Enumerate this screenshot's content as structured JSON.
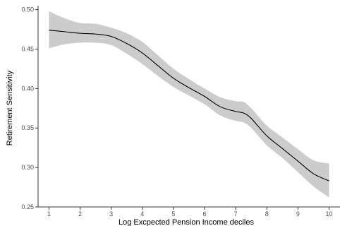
{
  "chart_data": {
    "type": "line",
    "title": "",
    "xlabel": "Log Excpected Pension Income deciles",
    "ylabel": "Retirement Sensitivity",
    "xlim": [
      0.65,
      10.35
    ],
    "ylim": [
      0.25,
      0.505
    ],
    "x_ticks": [
      1,
      2,
      3,
      4,
      5,
      6,
      7,
      8,
      9,
      10
    ],
    "x_tick_labels": [
      "1",
      "2",
      "3",
      "4",
      "5",
      "6",
      "7",
      "8",
      "9",
      "10"
    ],
    "y_ticks": [
      0.25,
      0.3,
      0.35,
      0.4,
      0.45,
      0.5
    ],
    "y_tick_labels": [
      "0.25",
      "0.30",
      "0.35",
      "0.40",
      "0.45",
      "0.50"
    ],
    "grid": false,
    "legend": "none",
    "series": [
      {
        "x": [
          1,
          1.5,
          2,
          2.5,
          3,
          3.5,
          4,
          4.5,
          5,
          5.5,
          6,
          6.5,
          7,
          7.25,
          7.5,
          8,
          8.5,
          9,
          9.5,
          10
        ],
        "y": [
          0.474,
          0.472,
          0.47,
          0.469,
          0.466,
          0.457,
          0.445,
          0.429,
          0.413,
          0.401,
          0.39,
          0.377,
          0.371,
          0.369,
          0.362,
          0.34,
          0.324,
          0.308,
          0.292,
          0.283
        ],
        "lower": [
          0.451,
          0.456,
          0.458,
          0.458,
          0.455,
          0.444,
          0.431,
          0.416,
          0.402,
          0.391,
          0.38,
          0.366,
          0.359,
          0.357,
          0.35,
          0.328,
          0.312,
          0.294,
          0.276,
          0.262
        ],
        "upper": [
          0.498,
          0.489,
          0.483,
          0.482,
          0.477,
          0.47,
          0.459,
          0.442,
          0.425,
          0.412,
          0.4,
          0.389,
          0.384,
          0.383,
          0.375,
          0.353,
          0.338,
          0.323,
          0.309,
          0.305
        ]
      }
    ],
    "colors": {
      "line": "#000000",
      "band": "#cccccc",
      "axis": "#333333",
      "tick_label": "#4d4d4d"
    }
  }
}
